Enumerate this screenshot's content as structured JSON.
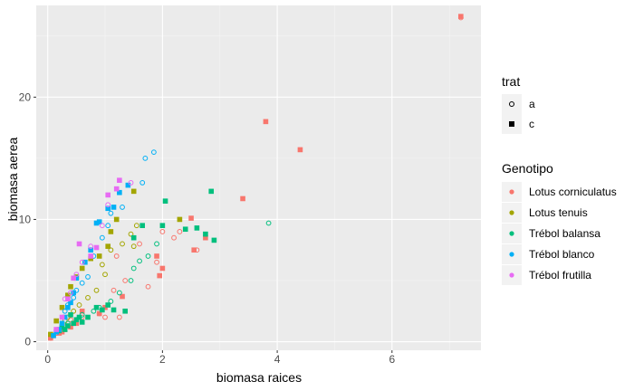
{
  "chart_data": {
    "type": "scatter",
    "xlabel": "biomasa raices",
    "ylabel": "biomasa aerea",
    "xlim": [
      -0.2,
      7.55
    ],
    "ylim": [
      -0.7,
      27.5
    ],
    "x_ticks": [
      0,
      2,
      4,
      6
    ],
    "x_tick_labels": [
      "0",
      "2",
      "4",
      "6"
    ],
    "y_ticks": [
      0,
      10,
      20
    ],
    "y_tick_labels": [
      "0",
      "10",
      "20"
    ],
    "grid": true,
    "background": "#ebebeb",
    "legend_position": "right",
    "legends": [
      {
        "title": "trat",
        "entries": [
          {
            "label": "a",
            "shape": "open-circle"
          },
          {
            "label": "c",
            "shape": "filled-square"
          }
        ]
      },
      {
        "title": "Genotipo",
        "entries": [
          {
            "label": "Lotus corniculatus",
            "color": "#F8766D"
          },
          {
            "label": "Lotus tenuis",
            "color": "#A3A500"
          },
          {
            "label": "Trébol balansa",
            "color": "#00BF7D"
          },
          {
            "label": "Trébol blanco",
            "color": "#00B0F6"
          },
          {
            "label": "Trébol frutilla",
            "color": "#E76BF3"
          }
        ]
      }
    ],
    "series": [
      {
        "name": "Lotus corniculatus",
        "color": "#F8766D",
        "trat_a": {
          "x": [
            7.2,
            2.0,
            1.6,
            1.2,
            1.9,
            2.2,
            2.3,
            2.6,
            1.35,
            1.15,
            0.9,
            1.25,
            1.0,
            1.75,
            0.4,
            0.6,
            0.45,
            0.3,
            0.2,
            0.15,
            0.1,
            0.05
          ],
          "y": [
            26.5,
            9.0,
            8.0,
            7.0,
            6.5,
            8.5,
            9.0,
            7.5,
            5.0,
            4.2,
            2.3,
            2.0,
            2.0,
            4.5,
            1.8,
            2.0,
            1.5,
            1.2,
            0.9,
            0.7,
            0.5,
            0.3
          ],
          "note": "open circles"
        },
        "trat_c": {
          "x": [
            7.2,
            3.8,
            4.4,
            3.4,
            2.5,
            2.75,
            2.55,
            2.0,
            1.9,
            1.95,
            1.3,
            1.0,
            0.9,
            0.6,
            0.5,
            0.4,
            0.3,
            0.25,
            0.2,
            0.1,
            0.05
          ],
          "y": [
            26.6,
            18.0,
            15.7,
            11.7,
            10.1,
            8.5,
            7.5,
            6.0,
            7.0,
            5.4,
            3.7,
            2.8,
            2.3,
            2.5,
            1.5,
            1.2,
            1.0,
            0.8,
            0.7,
            0.5,
            0.3
          ]
        }
      },
      {
        "name": "Lotus tenuis",
        "color": "#A3A500",
        "trat_a": {
          "x": [
            1.55,
            1.45,
            1.5,
            1.3,
            1.1,
            0.95,
            1.0,
            0.85,
            0.7,
            0.55,
            0.45,
            0.35,
            0.3,
            0.25
          ],
          "y": [
            9.5,
            8.8,
            7.8,
            8.0,
            7.5,
            6.3,
            5.5,
            4.2,
            3.6,
            3.0,
            2.5,
            2.0,
            1.7,
            1.3
          ]
        },
        "trat_c": {
          "x": [
            2.3,
            1.5,
            1.2,
            1.1,
            1.05,
            0.9,
            0.75,
            0.6,
            0.5,
            0.4,
            0.35,
            0.25,
            0.15,
            0.05
          ],
          "y": [
            10.0,
            12.3,
            10.0,
            9.0,
            7.8,
            7.0,
            6.8,
            6.0,
            5.3,
            4.5,
            3.8,
            2.8,
            1.7,
            0.6
          ]
        }
      },
      {
        "name": "Trébol balansa",
        "color": "#00BF7D",
        "trat_a": {
          "x": [
            3.85,
            1.9,
            1.75,
            1.6,
            1.5,
            1.45,
            1.25,
            1.1,
            0.9,
            0.8,
            0.6,
            0.5,
            0.35,
            0.25
          ],
          "y": [
            9.7,
            8.0,
            7.0,
            6.6,
            6.0,
            5.0,
            4.0,
            3.3,
            2.8,
            2.5,
            2.2,
            1.8,
            1.5,
            1.2
          ]
        },
        "trat_c": {
          "x": [
            2.85,
            2.9,
            2.75,
            2.6,
            2.4,
            2.05,
            2.0,
            1.65,
            1.5,
            1.35,
            1.15,
            1.05,
            0.95,
            0.85,
            0.7,
            0.6,
            0.55,
            0.5,
            0.45,
            0.4,
            0.35,
            0.3,
            0.25,
            0.2
          ],
          "y": [
            12.3,
            8.3,
            8.8,
            9.3,
            9.2,
            11.5,
            9.5,
            9.5,
            8.5,
            2.5,
            2.6,
            3.0,
            2.6,
            2.8,
            2.0,
            1.6,
            2.0,
            1.8,
            1.5,
            2.2,
            1.3,
            1.0,
            1.2,
            0.9
          ]
        }
      },
      {
        "name": "Trébol blanco",
        "color": "#00B0F6",
        "trat_a": {
          "x": [
            1.85,
            1.7,
            1.65,
            1.3,
            1.1,
            1.05,
            0.95,
            0.8,
            0.7,
            0.6,
            0.5,
            0.45,
            0.35,
            0.3
          ],
          "y": [
            15.5,
            15.0,
            13.0,
            11.0,
            10.5,
            9.5,
            8.5,
            7.0,
            5.3,
            4.8,
            4.2,
            3.6,
            3.0,
            2.5
          ]
        },
        "trat_c": {
          "x": [
            1.4,
            1.25,
            1.15,
            1.05,
            0.9,
            0.85,
            0.75,
            0.65,
            0.5,
            0.45,
            0.4,
            0.35,
            0.3,
            0.25,
            0.2,
            0.15,
            0.1
          ],
          "y": [
            12.8,
            12.2,
            11.0,
            10.9,
            9.8,
            9.7,
            7.5,
            6.5,
            5.2,
            4.0,
            3.2,
            2.8,
            2.0,
            1.5,
            1.0,
            0.8,
            0.5
          ]
        }
      },
      {
        "name": "Trébol frutilla",
        "color": "#E76BF3",
        "trat_a": {
          "x": [
            1.45,
            1.05,
            0.95,
            0.75,
            0.6,
            0.5,
            0.4,
            0.3
          ],
          "y": [
            13.0,
            11.2,
            9.5,
            7.8,
            6.5,
            5.5,
            4.0,
            3.5
          ]
        },
        "trat_c": {
          "x": [
            1.25,
            1.2,
            1.05,
            0.85,
            0.75,
            0.55,
            0.45,
            0.35,
            0.25,
            0.15
          ],
          "y": [
            13.2,
            12.5,
            12.0,
            7.7,
            7.0,
            8.0,
            5.2,
            3.5,
            2.0,
            1.0
          ]
        }
      }
    ]
  }
}
